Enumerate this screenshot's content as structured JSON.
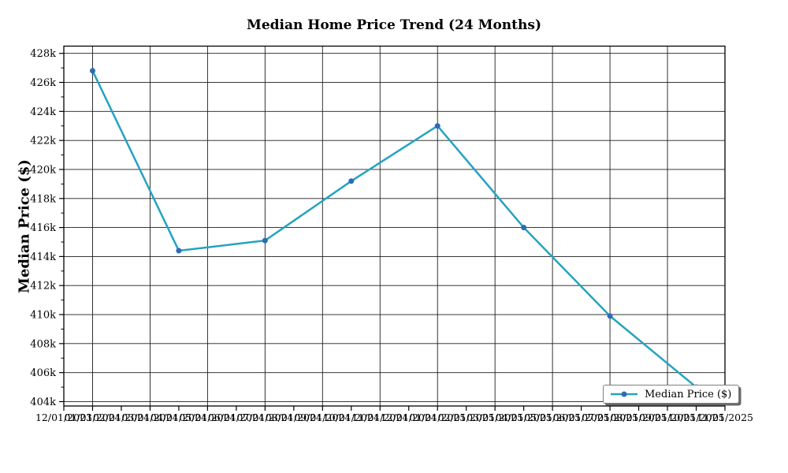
{
  "title": "Median Home Price Trend (24 Months)",
  "legend": {
    "label": "Median Price ($)",
    "position": "lower right"
  },
  "colors": {
    "line": "#24a3c1",
    "marker": "#2b6cb8",
    "grid": "#1c1c1c",
    "spine": "#000000",
    "text": "#000000",
    "legend_border": "#7f7f7f",
    "legend_shadow": "#686868",
    "background": "#ffffff"
  },
  "chart_data": {
    "type": "line",
    "title": "Median Home Price Trend (24 Months)",
    "xlabel": "",
    "ylabel": "Median Price ($)",
    "grid": true,
    "legend_position": "lower right",
    "x_tick_labels": [
      "12/01/2023",
      "01/01/2024",
      "02/01/2024",
      "03/01/2024",
      "04/01/2024",
      "05/01/2024",
      "06/01/2024",
      "07/01/2024",
      "08/01/2024",
      "09/01/2024",
      "10/01/2024",
      "11/01/2024",
      "12/01/2024",
      "01/01/2025",
      "02/01/2025",
      "03/01/2025",
      "04/01/2025",
      "05/01/2025",
      "06/01/2025",
      "07/01/2025",
      "08/01/2025",
      "09/01/2025",
      "10/01/2025",
      "11/01/2025"
    ],
    "x_gridline_tick_indices": [
      1,
      3,
      5,
      7,
      9,
      11,
      13,
      15,
      17,
      19,
      21,
      23
    ],
    "y_ticks": [
      404000,
      406000,
      408000,
      410000,
      412000,
      414000,
      416000,
      418000,
      420000,
      422000,
      424000,
      426000,
      428000
    ],
    "y_tick_labels": [
      "404k",
      "406k",
      "408k",
      "410k",
      "412k",
      "414k",
      "416k",
      "418k",
      "420k",
      "422k",
      "424k",
      "426k",
      "428k"
    ],
    "y_minor_ticks": [
      405000,
      407000,
      409000,
      411000,
      413000,
      415000,
      417000,
      419000,
      421000,
      423000,
      425000,
      427000
    ],
    "ylim": [
      403700,
      428500
    ],
    "series": [
      {
        "name": "Median Price ($)",
        "x": [
          "01/01/2024",
          "04/01/2024",
          "07/01/2024",
          "10/01/2024",
          "01/01/2025",
          "04/01/2025",
          "07/01/2025",
          "10/01/2025"
        ],
        "x_tick_index": [
          1,
          4,
          7,
          10,
          13,
          16,
          19,
          22
        ],
        "values": [
          426800,
          414400,
          415100,
          419200,
          423000,
          416000,
          409900,
          405000
        ]
      }
    ]
  }
}
